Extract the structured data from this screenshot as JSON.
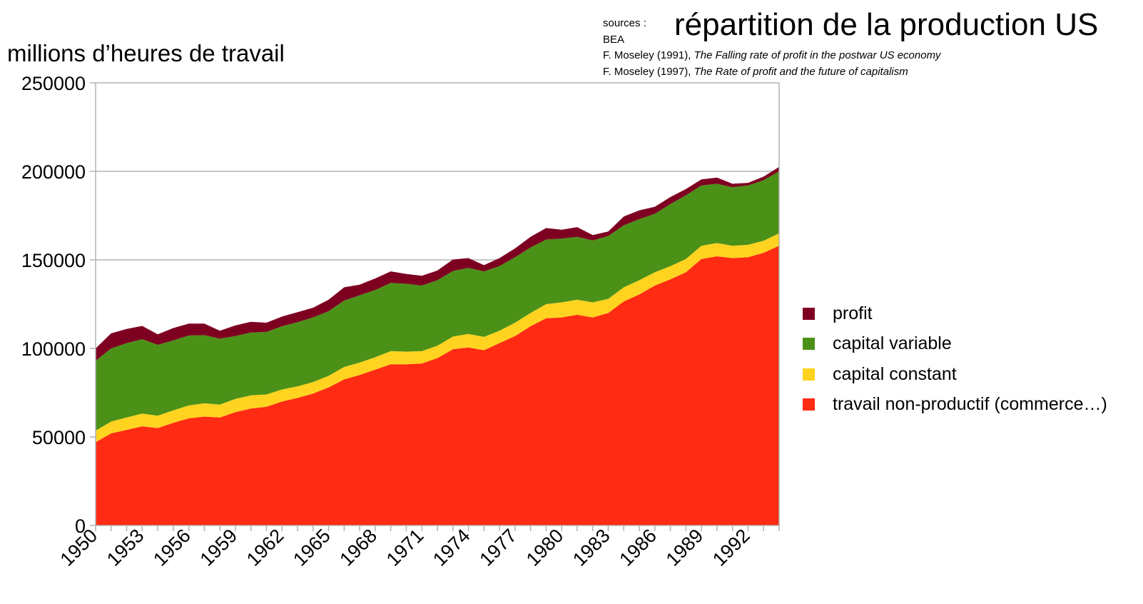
{
  "chart_data": {
    "type": "area",
    "stacked": true,
    "title": "répartition de la production US",
    "ylabel": "millions d’heures de travail",
    "xlabel": "",
    "ylim": [
      0,
      250000
    ],
    "yticks": [
      0,
      50000,
      100000,
      150000,
      200000,
      250000
    ],
    "x": [
      1950,
      1951,
      1952,
      1953,
      1954,
      1955,
      1956,
      1957,
      1958,
      1959,
      1960,
      1961,
      1962,
      1963,
      1964,
      1965,
      1966,
      1967,
      1968,
      1969,
      1970,
      1971,
      1972,
      1973,
      1974,
      1975,
      1976,
      1977,
      1978,
      1979,
      1980,
      1981,
      1982,
      1983,
      1984,
      1985,
      1986,
      1987,
      1988,
      1989,
      1990,
      1991,
      1992,
      1993,
      1994
    ],
    "xticks": [
      1950,
      1953,
      1956,
      1959,
      1962,
      1965,
      1968,
      1971,
      1974,
      1977,
      1980,
      1983,
      1986,
      1989,
      1992
    ],
    "grid": true,
    "legend_position": "right",
    "series": [
      {
        "name": "travail non-productif (commerce…)",
        "color": "#ff2b12",
        "values": [
          47000,
          52000,
          54000,
          56000,
          55000,
          58000,
          60500,
          61500,
          61000,
          64000,
          66000,
          67000,
          70000,
          72000,
          74500,
          78000,
          82500,
          85000,
          88000,
          91000,
          91000,
          91500,
          94500,
          99500,
          100500,
          99000,
          103000,
          107000,
          112500,
          117000,
          117500,
          119000,
          117500,
          120000,
          126500,
          130500,
          135500,
          139000,
          143000,
          150500,
          152000,
          151000,
          151500,
          154000,
          158000
        ]
      },
      {
        "name": "capital constant",
        "color": "#ffd320",
        "values": [
          6500,
          6700,
          7000,
          7200,
          7000,
          7000,
          7300,
          7500,
          7300,
          7500,
          7500,
          7000,
          6800,
          6600,
          6500,
          6500,
          7000,
          7000,
          7000,
          7500,
          7200,
          7000,
          7000,
          7200,
          7700,
          7500,
          7000,
          7500,
          7500,
          8000,
          8500,
          8500,
          8500,
          8000,
          8000,
          8000,
          7500,
          7500,
          7500,
          7500,
          7500,
          7000,
          7000,
          6800,
          7000
        ]
      },
      {
        "name": "capital variable",
        "color": "#4b9118",
        "values": [
          39500,
          41300,
          42000,
          42000,
          40000,
          39500,
          39500,
          38500,
          37200,
          35500,
          35500,
          35300,
          35700,
          36200,
          36500,
          36500,
          37500,
          38000,
          38000,
          38500,
          38300,
          37000,
          37000,
          37000,
          37300,
          37000,
          36500,
          37000,
          37000,
          36500,
          36000,
          35500,
          35000,
          35500,
          35000,
          34500,
          33000,
          35000,
          36000,
          34000,
          33500,
          33000,
          33500,
          34200,
          35000
        ]
      },
      {
        "name": "profit",
        "color": "#7e0021",
        "values": [
          7000,
          8500,
          8000,
          7500,
          6000,
          7000,
          6700,
          6500,
          4500,
          6000,
          6000,
          5200,
          5500,
          5700,
          5500,
          6500,
          7500,
          6000,
          6500,
          6500,
          5500,
          5500,
          5500,
          6500,
          5500,
          3500,
          4500,
          5000,
          6000,
          6500,
          5000,
          5500,
          3000,
          2500,
          5000,
          5000,
          4000,
          4000,
          3500,
          3500,
          3500,
          2000,
          1500,
          2000,
          2500
        ]
      }
    ]
  },
  "sources": {
    "label": "sources :",
    "line1": "BEA",
    "ref1_author": "F. Moseley (1991),",
    "ref1_title": "The Falling rate of profit in the postwar US economy",
    "ref2_author": "F. Moseley (1997),",
    "ref2_title": "The Rate of profit and the future of capitalism"
  }
}
